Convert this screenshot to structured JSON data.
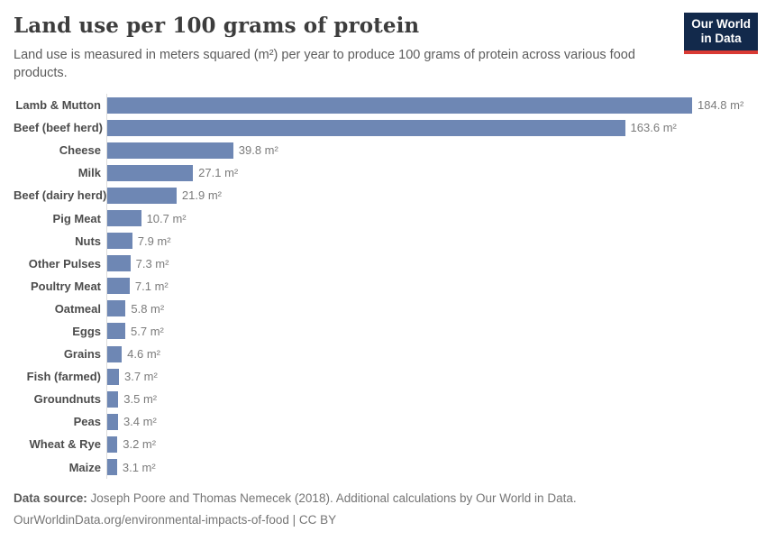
{
  "header": {
    "title": "Land use per 100 grams of protein",
    "subtitle": "Land use is measured in meters squared (m²) per year to produce 100 grams of protein across various food products.",
    "logo": {
      "line1": "Our World",
      "line2": "in Data"
    }
  },
  "chart_data": {
    "type": "bar",
    "orientation": "horizontal",
    "title": "Land use per 100 grams of protein",
    "unit": "m²",
    "xlim": [
      0,
      184.8
    ],
    "grid": false,
    "legend": "none",
    "categories": [
      "Lamb & Mutton",
      "Beef (beef herd)",
      "Cheese",
      "Milk",
      "Beef (dairy herd)",
      "Pig Meat",
      "Nuts",
      "Other Pulses",
      "Poultry Meat",
      "Oatmeal",
      "Eggs",
      "Grains",
      "Fish (farmed)",
      "Groundnuts",
      "Peas",
      "Wheat & Rye",
      "Maize"
    ],
    "values": [
      184.8,
      163.6,
      39.8,
      27.1,
      21.9,
      10.7,
      7.9,
      7.3,
      7.1,
      5.8,
      5.7,
      4.6,
      3.7,
      3.5,
      3.4,
      3.2,
      3.1
    ],
    "value_labels": [
      "184.8 m²",
      "163.6 m²",
      "39.8 m²",
      "27.1 m²",
      "21.9 m²",
      "10.7 m²",
      "7.9 m²",
      "7.3 m²",
      "7.1 m²",
      "5.8 m²",
      "5.7 m²",
      "4.6 m²",
      "3.7 m²",
      "3.5 m²",
      "3.4 m²",
      "3.2 m²",
      "3.1 m²"
    ]
  },
  "footer": {
    "source_label": "Data source:",
    "source_text": "Joseph Poore and Thomas Nemecek (2018). Additional calculations by Our World in Data.",
    "citation": "OurWorldinData.org/environmental-impacts-of-food | CC BY"
  },
  "colors": {
    "bar": "#6e87b4",
    "logo_background": "#12294b",
    "logo_accent_red": "#d93a34",
    "title_text": "#3d3d3d",
    "subtitle_text": "#5c5c5c",
    "category_label": "#4c4c4c",
    "value_label": "#7b7b7b",
    "axis_line": "#dcdcdc"
  }
}
